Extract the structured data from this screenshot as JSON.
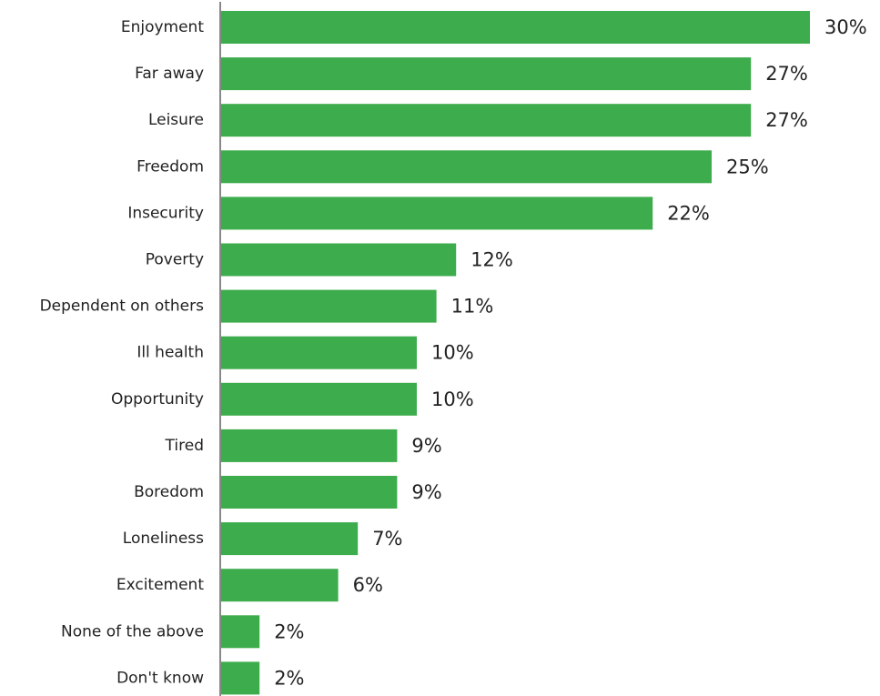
{
  "chart_data": {
    "type": "bar",
    "orientation": "horizontal",
    "title": "",
    "xlabel": "",
    "ylabel": "",
    "categories": [
      "Enjoyment",
      "Far away",
      "Leisure",
      "Freedom",
      "Insecurity",
      "Poverty",
      "Dependent on others",
      "Ill health",
      "Opportunity",
      "Tired",
      "Boredom",
      "Loneliness",
      "Excitement",
      "None of the above",
      "Don't know"
    ],
    "values": [
      30,
      27,
      27,
      25,
      22,
      12,
      11,
      10,
      10,
      9,
      9,
      7,
      6,
      2,
      2
    ],
    "value_labels": [
      "30%",
      "27%",
      "27%",
      "25%",
      "22%",
      "12%",
      "11%",
      "10%",
      "10%",
      "9%",
      "9%",
      "7%",
      "6%",
      "2%",
      "2%"
    ],
    "xlim": [
      0,
      30
    ],
    "grid": false,
    "legend": "none",
    "bar_color": "#3cac4c",
    "axis_color": "#888888"
  }
}
